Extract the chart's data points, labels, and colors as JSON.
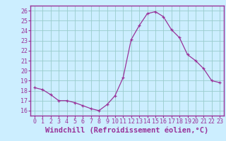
{
  "x": [
    0,
    1,
    2,
    3,
    4,
    5,
    6,
    7,
    8,
    9,
    10,
    11,
    12,
    13,
    14,
    15,
    16,
    17,
    18,
    19,
    20,
    21,
    22,
    23
  ],
  "y": [
    18.3,
    18.1,
    17.6,
    17.0,
    17.0,
    16.8,
    16.5,
    16.2,
    16.0,
    16.6,
    17.5,
    19.3,
    23.1,
    24.5,
    25.7,
    25.9,
    25.4,
    24.1,
    23.3,
    21.6,
    21.0,
    20.2,
    19.0,
    18.8
  ],
  "line_color": "#993399",
  "marker": "+",
  "marker_color": "#993399",
  "bg_color": "#cceeff",
  "grid_color": "#99cccc",
  "xlabel": "Windchill (Refroidissement éolien,°C)",
  "ylim": [
    15.5,
    26.5
  ],
  "xlim": [
    -0.5,
    23.5
  ],
  "yticks": [
    16,
    17,
    18,
    19,
    20,
    21,
    22,
    23,
    24,
    25,
    26
  ],
  "xticks": [
    0,
    1,
    2,
    3,
    4,
    5,
    6,
    7,
    8,
    9,
    10,
    11,
    12,
    13,
    14,
    15,
    16,
    17,
    18,
    19,
    20,
    21,
    22,
    23
  ],
  "tick_color": "#993399",
  "axis_color": "#993399",
  "label_fontsize": 7.5,
  "tick_fontsize": 6.0,
  "border_color": "#993399"
}
